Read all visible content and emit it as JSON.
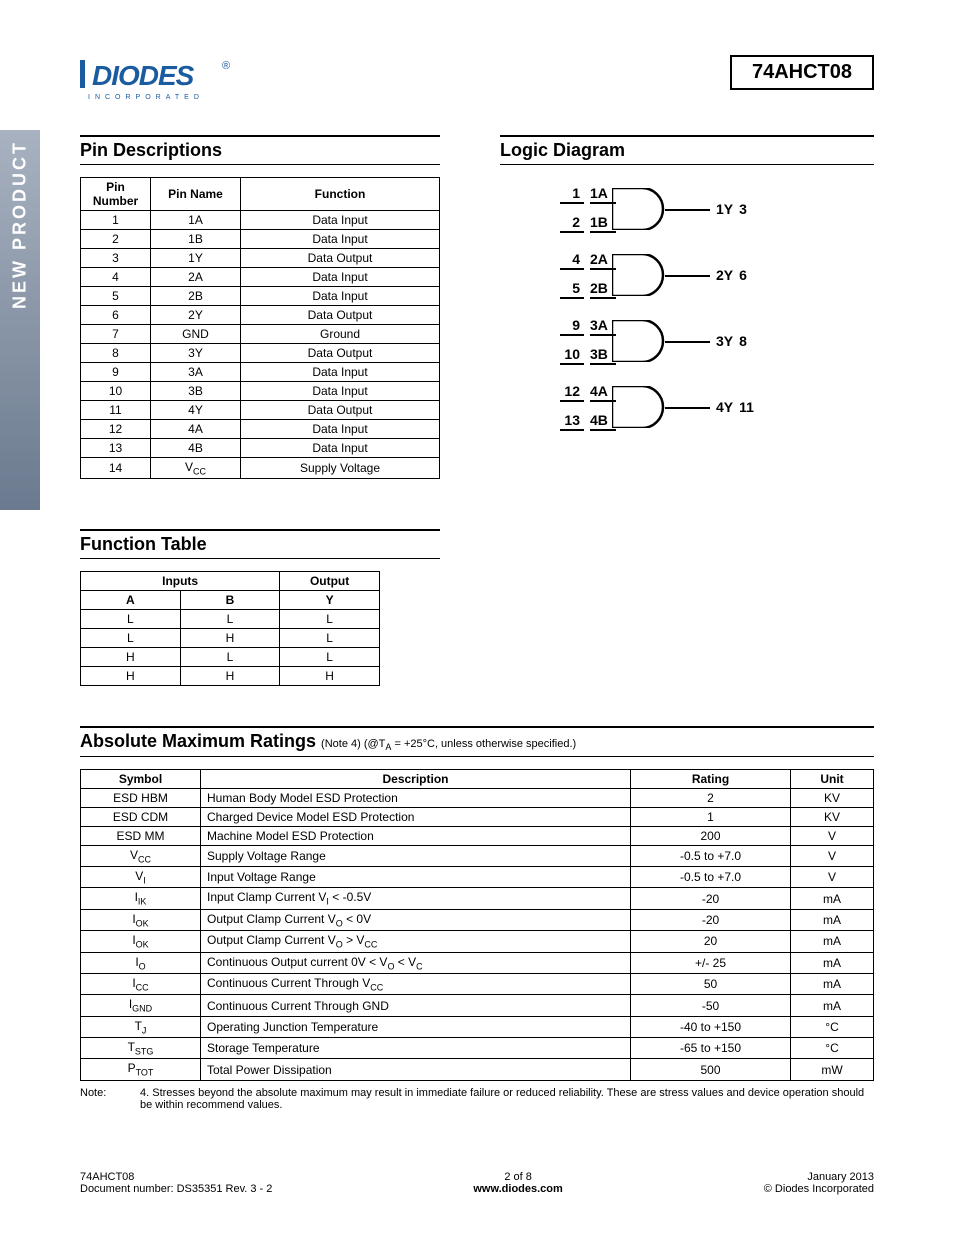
{
  "sidebar_label": "NEW PRODUCT",
  "part_number": "74AHCT08",
  "logo": {
    "brand": "DIODES",
    "tagline": "INCORPORATED",
    "bar_color": "#1b5ba0",
    "text_color": "#1b5ba0",
    "reg_mark": "®"
  },
  "pin_descriptions": {
    "title": "Pin Descriptions",
    "headers": [
      "Pin Number",
      "Pin Name",
      "Function"
    ],
    "rows": [
      [
        "1",
        "1A",
        "Data Input"
      ],
      [
        "2",
        "1B",
        "Data Input"
      ],
      [
        "3",
        "1Y",
        "Data Output"
      ],
      [
        "4",
        "2A",
        "Data Input"
      ],
      [
        "5",
        "2B",
        "Data Input"
      ],
      [
        "6",
        "2Y",
        "Data Output"
      ],
      [
        "7",
        "GND",
        "Ground"
      ],
      [
        "8",
        "3Y",
        "Data Output"
      ],
      [
        "9",
        "3A",
        "Data Input"
      ],
      [
        "10",
        "3B",
        "Data Input"
      ],
      [
        "11",
        "4Y",
        "Data Output"
      ],
      [
        "12",
        "4A",
        "Data Input"
      ],
      [
        "13",
        "4B",
        "Data Input"
      ],
      [
        "14",
        "V_CC",
        "Supply Voltage"
      ]
    ]
  },
  "logic_diagram": {
    "title": "Logic Diagram",
    "gates": [
      {
        "in_a_pin": "1",
        "in_a_label": "1A",
        "in_b_pin": "2",
        "in_b_label": "1B",
        "out_label": "1Y",
        "out_pin": "3"
      },
      {
        "in_a_pin": "4",
        "in_a_label": "2A",
        "in_b_pin": "5",
        "in_b_label": "2B",
        "out_label": "2Y",
        "out_pin": "6"
      },
      {
        "in_a_pin": "9",
        "in_a_label": "3A",
        "in_b_pin": "10",
        "in_b_label": "3B",
        "out_label": "3Y",
        "out_pin": "8"
      },
      {
        "in_a_pin": "12",
        "in_a_label": "4A",
        "in_b_pin": "13",
        "in_b_label": "4B",
        "out_label": "4Y",
        "out_pin": "11"
      }
    ]
  },
  "function_table": {
    "title": "Function Table",
    "group_headers": {
      "inputs": "Inputs",
      "output": "Output"
    },
    "sub_headers": {
      "a": "A",
      "b": "B",
      "y": "Y"
    },
    "rows": [
      [
        "L",
        "L",
        "L"
      ],
      [
        "L",
        "H",
        "L"
      ],
      [
        "H",
        "L",
        "L"
      ],
      [
        "H",
        "H",
        "H"
      ]
    ]
  },
  "amr": {
    "title": "Absolute Maximum Ratings",
    "note_inline": "(Note 4) (@T_A = +25°C, unless otherwise specified.)",
    "headers": [
      "Symbol",
      "Description",
      "Rating",
      "Unit"
    ],
    "rows": [
      {
        "sym": "ESD HBM",
        "desc": "Human Body Model ESD Protection",
        "rating": "2",
        "unit": "KV"
      },
      {
        "sym": "ESD CDM",
        "desc": "Charged Device Model ESD Protection",
        "rating": "1",
        "unit": "KV"
      },
      {
        "sym": "ESD MM",
        "desc": "Machine Model ESD Protection",
        "rating": "200",
        "unit": "V"
      },
      {
        "sym": "V_CC",
        "desc": "Supply Voltage Range",
        "rating": "-0.5 to +7.0",
        "unit": "V"
      },
      {
        "sym": "V_I",
        "desc": "Input Voltage Range",
        "rating": "-0.5 to +7.0",
        "unit": "V"
      },
      {
        "sym": "I_IK",
        "desc": "Input Clamp Current    V_I < -0.5V",
        "rating": "-20",
        "unit": "mA"
      },
      {
        "sym": "I_OK",
        "desc": "Output Clamp Current    V_O < 0V",
        "rating": "-20",
        "unit": "mA"
      },
      {
        "sym": "I_OK",
        "desc": "Output Clamp Current    V_O > V_CC",
        "rating": "20",
        "unit": "mA"
      },
      {
        "sym": "I_O",
        "desc": "Continuous Output current   0V < V_O < V_C",
        "rating": "+/- 25",
        "unit": "mA"
      },
      {
        "sym": "I_CC",
        "desc": "Continuous Current Through V_CC",
        "rating": "50",
        "unit": "mA"
      },
      {
        "sym": "I_GND",
        "desc": "Continuous Current Through GND",
        "rating": "-50",
        "unit": "mA"
      },
      {
        "sym": "T_J",
        "desc": "Operating Junction Temperature",
        "rating": "-40 to +150",
        "unit": "°C"
      },
      {
        "sym": "T_STG",
        "desc": "Storage Temperature",
        "rating": "-65 to +150",
        "unit": "°C"
      },
      {
        "sym": "P_TOT",
        "desc": "Total Power Dissipation",
        "rating": "500",
        "unit": "mW"
      }
    ],
    "note_label": "Note:",
    "note_text": "4. Stresses beyond the absolute maximum may result in immediate failure or reduced reliability. These are stress values and device operation should be within recommend values."
  },
  "footer": {
    "left_line1": "74AHCT08",
    "left_line2": "Document number: DS35351 Rev. 3 - 2",
    "center_line1": "2 of 8",
    "center_line2": "www.diodes.com",
    "right_line1": "January 2013",
    "right_line2": "© Diodes Incorporated"
  }
}
